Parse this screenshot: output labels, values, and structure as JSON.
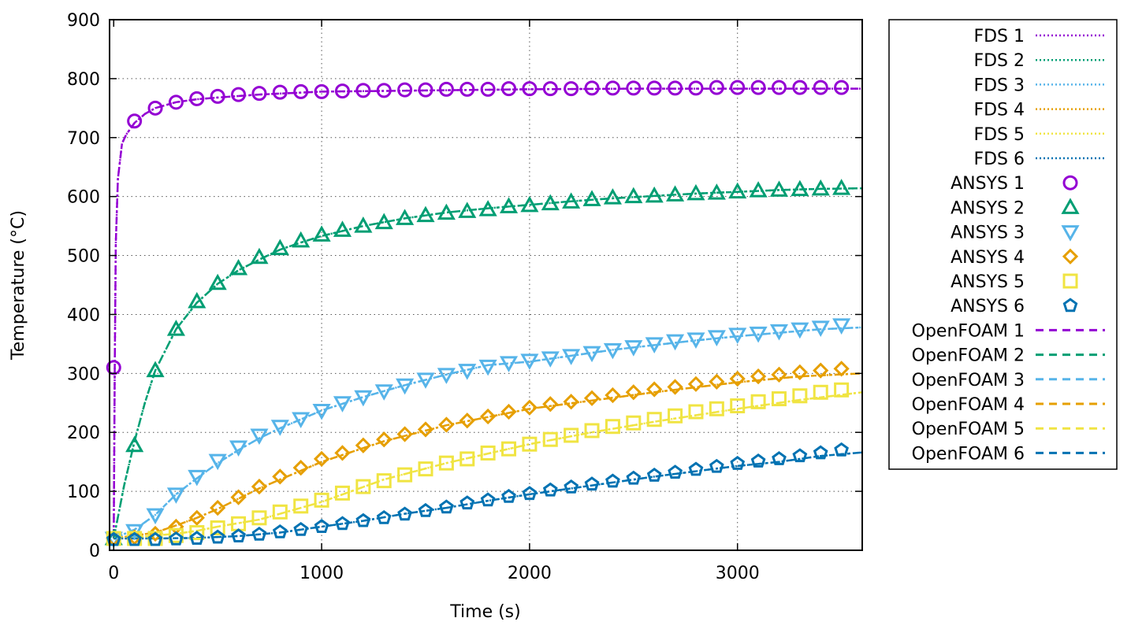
{
  "chart_data": {
    "type": "line",
    "title": "",
    "xlabel": "Time (s)",
    "ylabel": "Temperature (°C)",
    "xlim": [
      -20,
      3600
    ],
    "ylim": [
      0,
      900
    ],
    "xticks": [
      0,
      1000,
      2000,
      3000
    ],
    "yticks": [
      0,
      100,
      200,
      300,
      400,
      500,
      600,
      700,
      800,
      900
    ],
    "grid": true,
    "legend_position": "outside-right",
    "ansys_x": [
      0,
      100,
      200,
      300,
      400,
      500,
      600,
      700,
      800,
      900,
      1000,
      1100,
      1200,
      1300,
      1400,
      1500,
      1600,
      1700,
      1800,
      1900,
      2000,
      2100,
      2200,
      2300,
      2400,
      2500,
      2600,
      2700,
      2800,
      2900,
      3000,
      3100,
      3200,
      3300,
      3400,
      3500
    ],
    "fds_series": [
      {
        "name": "FDS 1",
        "color": "#9400d3",
        "x": [
          0,
          5,
          10,
          20,
          40,
          60,
          100,
          150,
          200,
          300,
          400,
          500,
          700,
          1000,
          1500,
          2000,
          2500,
          3000,
          3600
        ],
        "y": [
          20,
          310,
          520,
          630,
          690,
          705,
          725,
          740,
          750,
          760,
          765,
          768,
          773,
          778,
          780,
          782,
          783,
          783,
          783
        ]
      },
      {
        "name": "FDS 2",
        "color": "#009e73",
        "x": [
          0,
          50,
          100,
          150,
          200,
          300,
          400,
          500,
          600,
          700,
          800,
          900,
          1000,
          1200,
          1400,
          1600,
          1800,
          2000,
          2200,
          2400,
          2600,
          2800,
          3000,
          3200,
          3400,
          3600
        ],
        "y": [
          20,
          110,
          185,
          250,
          305,
          375,
          420,
          452,
          475,
          493,
          510,
          522,
          533,
          550,
          563,
          573,
          580,
          586,
          592,
          597,
          601,
          605,
          608,
          611,
          613,
          614
        ]
      },
      {
        "name": "FDS 3",
        "color": "#56b4e9",
        "x": [
          0,
          100,
          200,
          300,
          400,
          500,
          600,
          700,
          800,
          900,
          1000,
          1200,
          1400,
          1600,
          1800,
          2000,
          2200,
          2400,
          2600,
          2800,
          3000,
          3200,
          3400,
          3600
        ],
        "y": [
          20,
          35,
          60,
          95,
          122,
          148,
          170,
          190,
          207,
          222,
          237,
          260,
          280,
          298,
          314,
          320,
          330,
          340,
          348,
          356,
          363,
          369,
          375,
          378
        ]
      },
      {
        "name": "FDS 4",
        "color": "#e69f00",
        "x": [
          0,
          100,
          200,
          300,
          400,
          500,
          700,
          1000,
          1300,
          1600,
          2000,
          2300,
          2600,
          3000,
          3300,
          3600
        ],
        "y": [
          20,
          25,
          30,
          42,
          55,
          70,
          105,
          150,
          185,
          212,
          240,
          254,
          268,
          285,
          295,
          300
        ]
      },
      {
        "name": "FDS 5",
        "color": "#f0e442",
        "x": [
          0,
          100,
          200,
          300,
          400,
          500,
          700,
          1000,
          1300,
          1600,
          2000,
          2300,
          2600,
          3000,
          3300,
          3600
        ],
        "y": [
          20,
          22,
          25,
          28,
          33,
          40,
          52,
          82,
          120,
          148,
          180,
          200,
          218,
          240,
          255,
          268
        ]
      },
      {
        "name": "FDS 6",
        "color": "#0072b2",
        "x": [
          0,
          200,
          400,
          600,
          800,
          1000,
          1200,
          1400,
          1600,
          1800,
          2000,
          2200,
          2400,
          2600,
          2800,
          3000,
          3200,
          3400,
          3600
        ],
        "y": [
          20,
          20,
          21,
          24,
          30,
          40,
          50,
          62,
          72,
          84,
          95,
          105,
          115,
          125,
          134,
          143,
          150,
          160,
          166
        ]
      }
    ],
    "ansys_series": [
      {
        "name": "ANSYS 1",
        "marker": "circle",
        "color": "#9400d3",
        "y": [
          310,
          728,
          750,
          760,
          766,
          770,
          773,
          775,
          777,
          778,
          778,
          779,
          780,
          780,
          781,
          781,
          782,
          782,
          782,
          783,
          783,
          783,
          783,
          784,
          784,
          784,
          784,
          784,
          784,
          785,
          785,
          785,
          785,
          785,
          785,
          785
        ]
      },
      {
        "name": "ANSYS 2",
        "marker": "triangle-up",
        "color": "#009e73",
        "y": [
          20,
          178,
          305,
          375,
          422,
          453,
          478,
          497,
          512,
          525,
          535,
          543,
          550,
          556,
          563,
          568,
          572,
          575,
          578,
          583,
          585,
          588,
          591,
          595,
          598,
          600,
          601,
          603,
          605,
          606,
          608,
          610,
          611,
          612,
          613,
          614
        ]
      },
      {
        "name": "ANSYS 3",
        "marker": "triangle-down",
        "color": "#56b4e9",
        "y": [
          20,
          33,
          60,
          95,
          125,
          152,
          175,
          195,
          210,
          223,
          237,
          250,
          260,
          270,
          280,
          290,
          298,
          305,
          312,
          318,
          322,
          326,
          330,
          335,
          340,
          345,
          350,
          355,
          358,
          362,
          366,
          368,
          372,
          375,
          378,
          382
        ]
      },
      {
        "name": "ANSYS 4",
        "marker": "diamond",
        "color": "#e69f00",
        "y": [
          20,
          22,
          28,
          40,
          55,
          72,
          90,
          108,
          125,
          140,
          155,
          165,
          178,
          188,
          197,
          205,
          213,
          220,
          227,
          235,
          242,
          248,
          252,
          258,
          263,
          268,
          273,
          277,
          282,
          286,
          291,
          295,
          298,
          302,
          305,
          308
        ]
      },
      {
        "name": "ANSYS 5",
        "marker": "square",
        "color": "#f0e442",
        "y": [
          20,
          20,
          20,
          25,
          30,
          38,
          45,
          55,
          65,
          75,
          85,
          97,
          108,
          118,
          128,
          138,
          148,
          155,
          165,
          172,
          180,
          188,
          195,
          203,
          210,
          216,
          222,
          228,
          235,
          240,
          245,
          252,
          257,
          262,
          268,
          272
        ]
      },
      {
        "name": "ANSYS 6",
        "marker": "pentagon",
        "color": "#0072b2",
        "y": [
          18,
          18,
          18,
          19,
          20,
          22,
          24,
          27,
          31,
          35,
          40,
          45,
          50,
          55,
          61,
          67,
          73,
          80,
          85,
          91,
          96,
          102,
          107,
          112,
          117,
          122,
          127,
          132,
          137,
          142,
          147,
          151,
          155,
          160,
          165,
          170
        ]
      }
    ],
    "openfoam_series": [
      {
        "name": "OpenFOAM 1",
        "color": "#9400d3"
      },
      {
        "name": "OpenFOAM 2",
        "color": "#009e73"
      },
      {
        "name": "OpenFOAM 3",
        "color": "#56b4e9"
      },
      {
        "name": "OpenFOAM 4",
        "color": "#e69f00"
      },
      {
        "name": "OpenFOAM 5",
        "color": "#f0e442"
      },
      {
        "name": "OpenFOAM 6",
        "color": "#0072b2"
      }
    ]
  }
}
